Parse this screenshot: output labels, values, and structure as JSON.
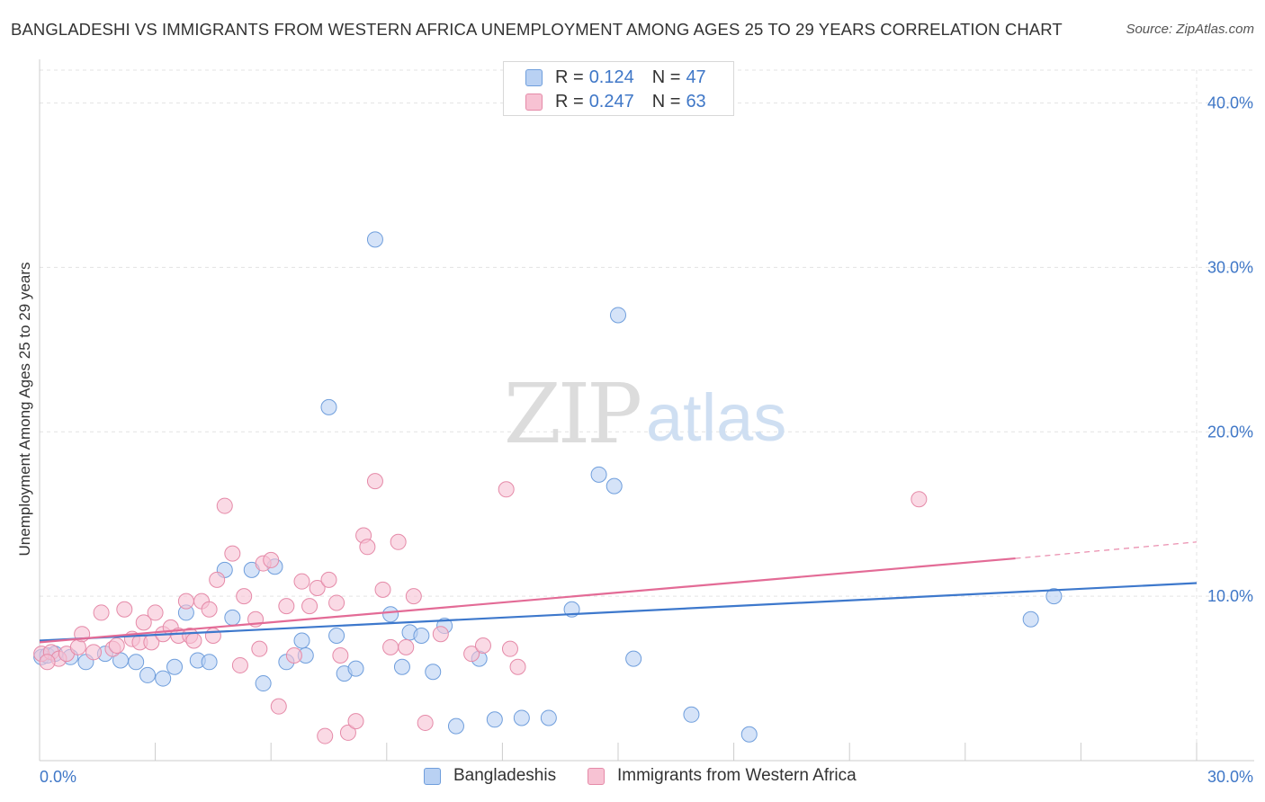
{
  "title": "BANGLADESHI VS IMMIGRANTS FROM WESTERN AFRICA UNEMPLOYMENT AMONG AGES 25 TO 29 YEARS CORRELATION CHART",
  "source": "Source: ZipAtlas.com",
  "watermark": {
    "zip": "ZIP",
    "atlas": "atlas"
  },
  "legend_top": [
    {
      "r_label": "R =",
      "r_value": "0.124",
      "n_label": "N =",
      "n_value": "47"
    },
    {
      "r_label": "R =",
      "r_value": "0.247",
      "n_label": "N =",
      "n_value": "63"
    }
  ],
  "legend_bottom": [
    "Bangladeshis",
    "Immigrants from Western Africa"
  ],
  "colors": {
    "blue_fill": "#b9d1f3",
    "blue_stroke": "#6f9edc",
    "blue_line": "#3d78cc",
    "pink_fill": "#f7c2d3",
    "pink_stroke": "#e58aa8",
    "pink_line": "#e36b96",
    "grid": "#e3e3e3",
    "tick_label": "#3f77c7"
  },
  "chart_data": {
    "type": "scatter",
    "title": "BANGLADESHI VS IMMIGRANTS FROM WESTERN AFRICA UNEMPLOYMENT AMONG AGES 25 TO 29 YEARS CORRELATION CHART",
    "xlabel": "",
    "ylabel": "Unemployment Among Ages 25 to 29 years",
    "xlim": [
      0,
      30
    ],
    "ylim": [
      0,
      42
    ],
    "x_tick_labels": [
      "0.0%",
      "30.0%"
    ],
    "y_ticks": [
      10,
      20,
      30,
      40
    ],
    "y_tick_labels": [
      "10.0%",
      "20.0%",
      "30.0%",
      "40.0%"
    ],
    "grid": true,
    "legend_placement": "top-center",
    "series": [
      {
        "name": "Bangladeshis",
        "r": 0.124,
        "n": 47,
        "trend": {
          "x": [
            0,
            30
          ],
          "y": [
            7.3,
            10.8
          ]
        },
        "points": [
          [
            0.05,
            6.3
          ],
          [
            0.2,
            6.4
          ],
          [
            0.4,
            6.5
          ],
          [
            0.8,
            6.3
          ],
          [
            1.2,
            6.0
          ],
          [
            1.7,
            6.5
          ],
          [
            2.1,
            6.1
          ],
          [
            2.5,
            6.0
          ],
          [
            2.8,
            5.2
          ],
          [
            3.2,
            5.0
          ],
          [
            3.5,
            5.7
          ],
          [
            3.8,
            9.0
          ],
          [
            4.1,
            6.1
          ],
          [
            4.4,
            6.0
          ],
          [
            4.8,
            11.6
          ],
          [
            5.0,
            8.7
          ],
          [
            5.5,
            11.6
          ],
          [
            5.8,
            4.7
          ],
          [
            6.1,
            11.8
          ],
          [
            6.4,
            6.0
          ],
          [
            6.8,
            7.3
          ],
          [
            6.9,
            6.4
          ],
          [
            7.5,
            21.5
          ],
          [
            7.7,
            7.6
          ],
          [
            7.9,
            5.3
          ],
          [
            8.2,
            5.6
          ],
          [
            8.7,
            31.7
          ],
          [
            9.1,
            8.9
          ],
          [
            9.4,
            5.7
          ],
          [
            9.6,
            7.8
          ],
          [
            9.9,
            7.6
          ],
          [
            10.2,
            5.4
          ],
          [
            10.5,
            8.2
          ],
          [
            10.8,
            2.1
          ],
          [
            11.4,
            6.2
          ],
          [
            11.8,
            2.5
          ],
          [
            12.5,
            2.6
          ],
          [
            13.2,
            2.6
          ],
          [
            13.8,
            9.2
          ],
          [
            14.5,
            17.4
          ],
          [
            14.9,
            16.7
          ],
          [
            15.0,
            27.1
          ],
          [
            15.4,
            6.2
          ],
          [
            16.9,
            2.8
          ],
          [
            18.4,
            1.6
          ],
          [
            25.7,
            8.6
          ],
          [
            26.3,
            10.0
          ]
        ]
      },
      {
        "name": "Immigrants from Western Africa",
        "r": 0.247,
        "n": 63,
        "trend": {
          "x": [
            0,
            25.3
          ],
          "y": [
            7.2,
            12.3
          ]
        },
        "trend_dashed": {
          "x": [
            25.3,
            30
          ],
          "y": [
            12.3,
            13.3
          ]
        },
        "points": [
          [
            0.05,
            6.5
          ],
          [
            0.3,
            6.6
          ],
          [
            0.5,
            6.2
          ],
          [
            0.7,
            6.5
          ],
          [
            1.0,
            6.9
          ],
          [
            1.1,
            7.7
          ],
          [
            1.4,
            6.6
          ],
          [
            1.6,
            9.0
          ],
          [
            1.9,
            6.8
          ],
          [
            2.0,
            7.0
          ],
          [
            2.2,
            9.2
          ],
          [
            2.4,
            7.4
          ],
          [
            2.6,
            7.2
          ],
          [
            2.7,
            8.4
          ],
          [
            2.9,
            7.2
          ],
          [
            3.0,
            9.0
          ],
          [
            3.2,
            7.7
          ],
          [
            3.4,
            8.1
          ],
          [
            3.6,
            7.6
          ],
          [
            3.8,
            9.7
          ],
          [
            3.9,
            7.6
          ],
          [
            4.0,
            7.3
          ],
          [
            4.2,
            9.7
          ],
          [
            4.4,
            9.2
          ],
          [
            4.5,
            7.6
          ],
          [
            4.6,
            11.0
          ],
          [
            4.8,
            15.5
          ],
          [
            5.0,
            12.6
          ],
          [
            5.2,
            5.8
          ],
          [
            5.3,
            10.0
          ],
          [
            5.6,
            8.6
          ],
          [
            5.7,
            6.8
          ],
          [
            5.8,
            12.0
          ],
          [
            6.0,
            12.2
          ],
          [
            6.2,
            3.3
          ],
          [
            6.4,
            9.4
          ],
          [
            6.6,
            6.4
          ],
          [
            6.8,
            10.9
          ],
          [
            7.0,
            9.4
          ],
          [
            7.2,
            10.5
          ],
          [
            7.4,
            1.5
          ],
          [
            7.5,
            11.0
          ],
          [
            7.7,
            9.6
          ],
          [
            7.8,
            6.4
          ],
          [
            8.0,
            1.7
          ],
          [
            8.2,
            2.4
          ],
          [
            8.4,
            13.7
          ],
          [
            8.5,
            13.0
          ],
          [
            8.7,
            17.0
          ],
          [
            8.9,
            10.4
          ],
          [
            9.1,
            6.9
          ],
          [
            9.3,
            13.3
          ],
          [
            9.5,
            6.9
          ],
          [
            9.7,
            10.0
          ],
          [
            10.0,
            2.3
          ],
          [
            10.4,
            7.7
          ],
          [
            11.2,
            6.5
          ],
          [
            11.5,
            7.0
          ],
          [
            12.1,
            16.5
          ],
          [
            12.2,
            6.8
          ],
          [
            12.4,
            5.7
          ],
          [
            22.8,
            15.9
          ],
          [
            0.2,
            6.0
          ]
        ]
      }
    ]
  }
}
